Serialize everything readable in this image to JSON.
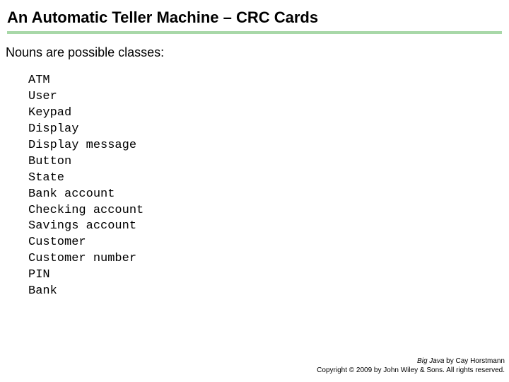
{
  "title": "An Automatic Teller Machine – CRC Cards",
  "subtitle": "Nouns are possible classes:",
  "nouns": [
    "ATM",
    "User",
    "Keypad",
    "Display",
    "Display message",
    "Button",
    "State",
    "Bank account",
    "Checking account",
    "Savings account",
    "Customer",
    "Customer number",
    "PIN",
    "Bank"
  ],
  "footer": {
    "book": "Big Java",
    "author_line": " by Cay Horstmann",
    "copyright": "Copyright © 2009 by John Wiley & Sons. All rights reserved."
  },
  "colors": {
    "underline": "#a8d8a8",
    "background": "#ffffff",
    "text": "#000000"
  },
  "fonts": {
    "title_family": "Trebuchet MS",
    "title_size_pt": 22,
    "subtitle_family": "Arial",
    "subtitle_size_pt": 18,
    "mono_family": "Courier New",
    "mono_size_pt": 17,
    "footer_size_pt": 10
  }
}
